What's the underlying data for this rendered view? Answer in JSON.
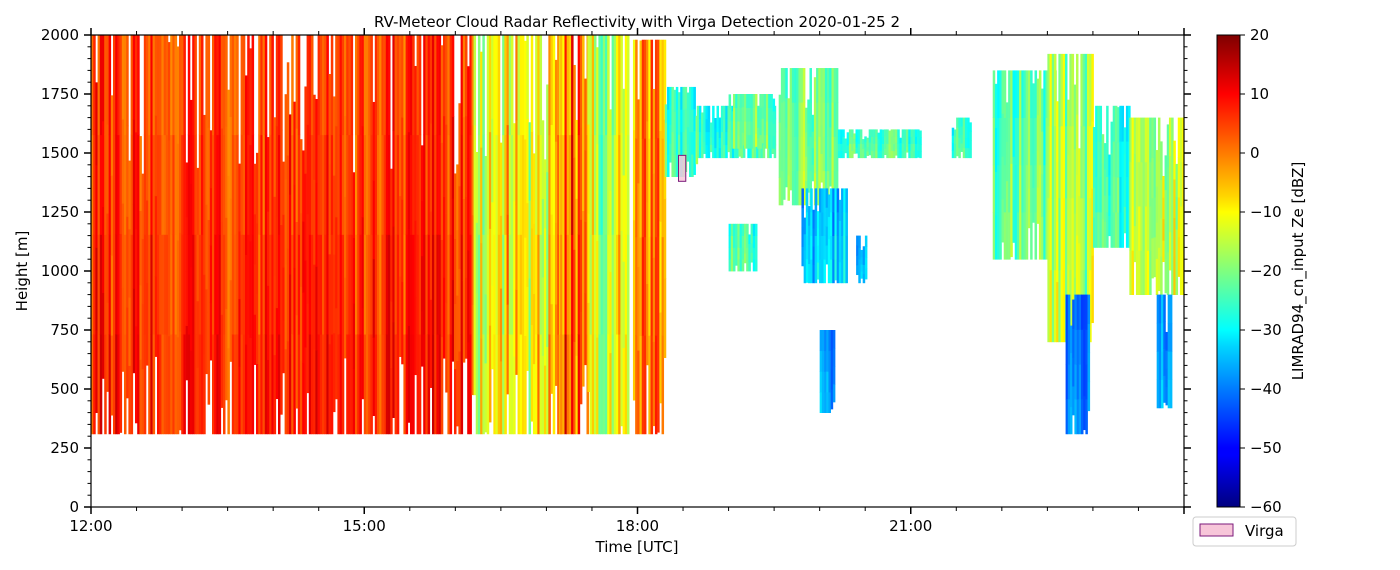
{
  "chart_data": {
    "type": "heatmap",
    "title": "RV-Meteor Cloud Radar Reflectivity with Virga Detection 2020-01-25 2",
    "xlabel": "Time [UTC]",
    "ylabel": "Height [m]",
    "xlim": [
      12.0,
      24.0
    ],
    "ylim": [
      0,
      2000
    ],
    "x_ticks": [
      {
        "value": 12,
        "label": "12:00"
      },
      {
        "value": 15,
        "label": "15:00"
      },
      {
        "value": 18,
        "label": "18:00"
      },
      {
        "value": 21,
        "label": "21:00"
      }
    ],
    "y_ticks": [
      0,
      250,
      500,
      750,
      1000,
      1250,
      1500,
      1750,
      2000
    ],
    "colorbar": {
      "label": "LIMRAD94_cn_input Ze [dBZ]",
      "range": [
        -60,
        20
      ],
      "ticks": [
        20,
        10,
        0,
        -10,
        -20,
        -30,
        -40,
        -50,
        -60
      ],
      "colormap": "jet"
    },
    "grid": false,
    "legend": {
      "position": "below-colorbar",
      "entries": [
        {
          "label": "Virga",
          "color": "#f7c6d9",
          "edge": "#7b1a7b"
        }
      ]
    },
    "virga": [
      {
        "t0": 18.45,
        "t1": 18.53,
        "h0": 1380,
        "h1": 1490
      }
    ],
    "echo_regions": [
      {
        "t0": 12.0,
        "t1": 16.2,
        "h0": 310,
        "h1": 2000,
        "dbz": 6,
        "var": 6
      },
      {
        "t0": 16.2,
        "t1": 17.15,
        "h0": 310,
        "h1": 2000,
        "dbz": -10,
        "var": 12
      },
      {
        "t0": 17.15,
        "t1": 17.45,
        "h0": 310,
        "h1": 2000,
        "dbz": 2,
        "var": 10
      },
      {
        "t0": 17.45,
        "t1": 17.9,
        "h0": 310,
        "h1": 2000,
        "dbz": -15,
        "var": 12
      },
      {
        "t0": 17.95,
        "t1": 18.3,
        "h0": 310,
        "h1": 1980,
        "dbz": -2,
        "var": 9
      },
      {
        "t0": 18.3,
        "t1": 18.65,
        "h0": 1400,
        "h1": 1780,
        "dbz": -25,
        "var": 7
      },
      {
        "t0": 18.65,
        "t1": 19.5,
        "h0": 1480,
        "h1": 1700,
        "dbz": -27,
        "var": 6
      },
      {
        "t0": 19.0,
        "t1": 19.5,
        "h0": 1520,
        "h1": 1750,
        "dbz": -22,
        "var": 6
      },
      {
        "t0": 19.55,
        "t1": 20.2,
        "h0": 1280,
        "h1": 1860,
        "dbz": -20,
        "var": 6
      },
      {
        "t0": 19.8,
        "t1": 20.3,
        "h0": 950,
        "h1": 1350,
        "dbz": -35,
        "var": 6
      },
      {
        "t0": 20.4,
        "t1": 20.5,
        "h0": 950,
        "h1": 1150,
        "dbz": -35,
        "var": 5
      },
      {
        "t0": 20.2,
        "t1": 21.1,
        "h0": 1480,
        "h1": 1600,
        "dbz": -25,
        "var": 6
      },
      {
        "t0": 21.45,
        "t1": 21.65,
        "h0": 1480,
        "h1": 1650,
        "dbz": -25,
        "var": 6
      },
      {
        "t0": 20.0,
        "t1": 20.15,
        "h0": 400,
        "h1": 750,
        "dbz": -40,
        "var": 5
      },
      {
        "t0": 19.0,
        "t1": 19.3,
        "h0": 1000,
        "h1": 1200,
        "dbz": -25,
        "var": 6
      },
      {
        "t0": 21.9,
        "t1": 22.6,
        "h0": 1050,
        "h1": 1850,
        "dbz": -22,
        "var": 7
      },
      {
        "t0": 22.5,
        "t1": 23.0,
        "h0": 700,
        "h1": 1920,
        "dbz": -18,
        "var": 8
      },
      {
        "t0": 22.7,
        "t1": 22.95,
        "h0": 310,
        "h1": 900,
        "dbz": -40,
        "var": 5
      },
      {
        "t0": 23.0,
        "t1": 23.4,
        "h0": 1100,
        "h1": 1700,
        "dbz": -25,
        "var": 7
      },
      {
        "t0": 23.4,
        "t1": 24.0,
        "h0": 900,
        "h1": 1650,
        "dbz": -15,
        "var": 8
      },
      {
        "t0": 23.7,
        "t1": 23.85,
        "h0": 420,
        "h1": 900,
        "dbz": -38,
        "var": 5
      }
    ]
  }
}
